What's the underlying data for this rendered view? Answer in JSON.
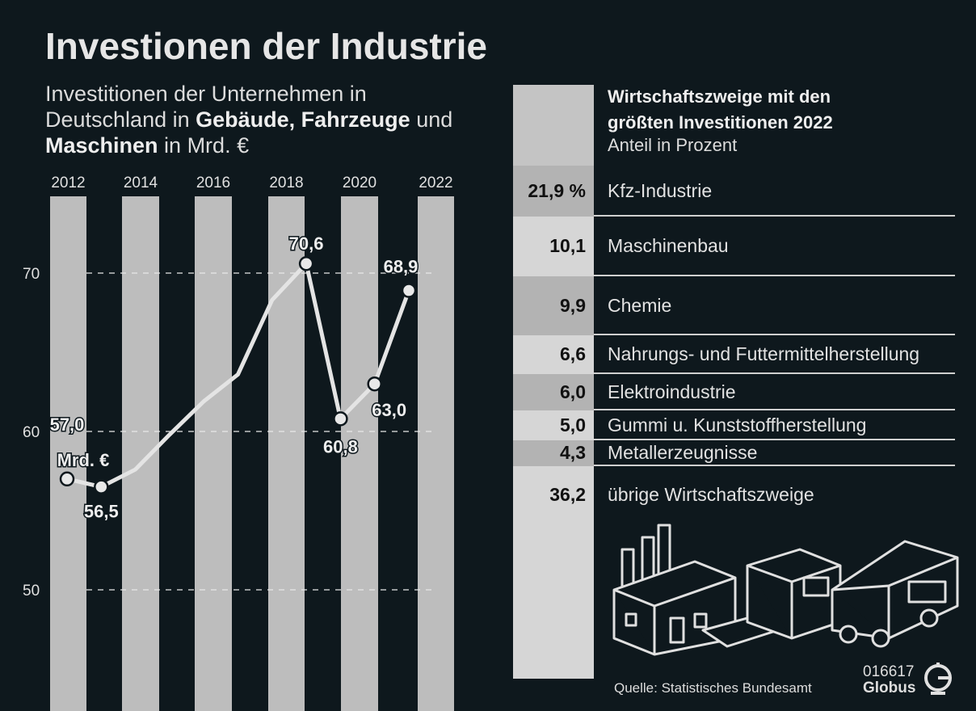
{
  "title": "Investionen der Industrie",
  "subtitle": {
    "line1": "Investitionen der Unternehmen in",
    "line2_a": "Deutschland in ",
    "line2_b": "Gebäude, Fahrzeuge",
    "line2_c": " und",
    "line3_a": "Maschinen",
    "line3_b": " in Mrd. €"
  },
  "chart_data": [
    {
      "type": "line",
      "x": [
        2012,
        2013,
        2014,
        2015,
        2016,
        2017,
        2018,
        2019,
        2020,
        2021,
        2022
      ],
      "values": [
        57.0,
        56.5,
        57.6,
        59.8,
        61.9,
        63.6,
        68.3,
        70.6,
        60.8,
        63.0,
        68.9
      ],
      "x_tick_labels": [
        "2012",
        "2014",
        "2016",
        "2018",
        "2020",
        "2022"
      ],
      "y_ticks": [
        "50",
        "60",
        "70"
      ],
      "ylim": [
        45.5,
        75
      ],
      "grid": "dashed at 50, 60, 70",
      "line_color": "#e4e4e4",
      "band_color": "#bdbdbd",
      "data_labels": [
        {
          "year": 2012,
          "text": "57,0",
          "unit": "Mrd. €"
        },
        {
          "year": 2013,
          "text": "56,5"
        },
        {
          "year": 2019,
          "text": "70,6"
        },
        {
          "year": 2020,
          "text": "60,8"
        },
        {
          "year": 2021,
          "text": "63,0"
        },
        {
          "year": 2022,
          "text": "68,9"
        }
      ]
    },
    {
      "type": "table",
      "title_line1": "Wirtschaftszweige mit den",
      "title_line2": "größten Investitionen 2022",
      "subtitle": "Anteil in Prozent",
      "rows": [
        {
          "value": "21,9 %",
          "label": "Kfz-Industrie",
          "shade": "#b3b3b3"
        },
        {
          "value": "10,1",
          "label": "Maschinenbau",
          "shade": "#d6d6d6"
        },
        {
          "value": "9,9",
          "label": "Chemie",
          "shade": "#b3b3b3"
        },
        {
          "value": "6,6",
          "label": "Nahrungs- und Futtermittelherstellung",
          "shade": "#d6d6d6"
        },
        {
          "value": "6,0",
          "label": "Elektroindustrie",
          "shade": "#b3b3b3"
        },
        {
          "value": "5,0",
          "label": "Gummi u. Kunststoffherstellung",
          "shade": "#d6d6d6"
        },
        {
          "value": "4,3",
          "label": "Metallerzeugnisse",
          "shade": "#b3b3b3"
        },
        {
          "value": "36,2",
          "label": "übrige Wirtschaftszweige",
          "shade": "#d6d6d6"
        }
      ]
    }
  ],
  "footer": {
    "source": "Quelle: Statistisches Bundesamt",
    "code": "016617",
    "brand": "Globus"
  },
  "colors": {
    "background": "#0e181d",
    "header_band": "#c4c4c4"
  }
}
